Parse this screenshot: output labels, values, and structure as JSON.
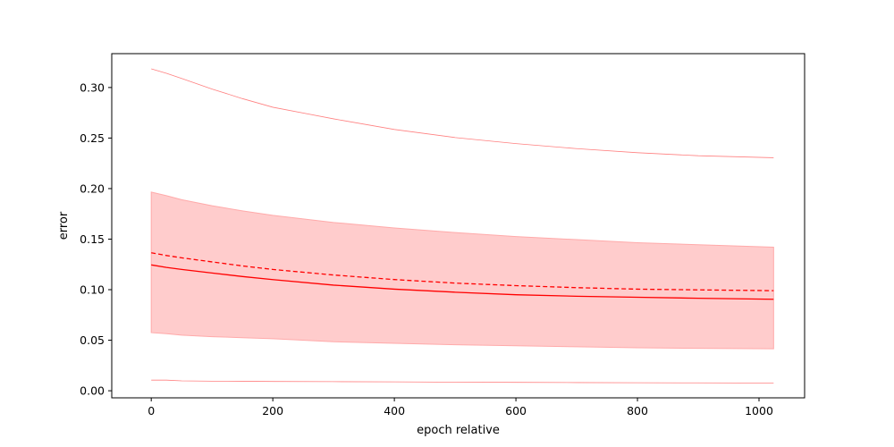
{
  "chart_data": {
    "type": "line",
    "title": "",
    "xlabel": "epoch relative",
    "ylabel": "error",
    "xlim": [
      -65,
      1075
    ],
    "ylim": [
      -0.007,
      0.3335
    ],
    "xticks": [
      0,
      200,
      400,
      600,
      800,
      1000
    ],
    "yticks": [
      0.0,
      0.05,
      0.1,
      0.15,
      0.2,
      0.25,
      0.3
    ],
    "ytick_labels": [
      "0.00",
      "0.05",
      "0.10",
      "0.15",
      "0.20",
      "0.25",
      "0.30"
    ],
    "grid": false,
    "legend": false,
    "colors": {
      "line": "#ff0000",
      "band_fill": "#ffcccc",
      "band_edge": "#ffaaaa",
      "extreme": "#ff8080"
    },
    "x": [
      0,
      25,
      50,
      100,
      150,
      200,
      300,
      400,
      500,
      600,
      700,
      800,
      900,
      1024
    ],
    "series": [
      {
        "role": "median",
        "style": "solid",
        "values": [
          0.1245,
          0.122,
          0.12,
          0.1165,
          0.113,
          0.11,
          0.1045,
          0.1005,
          0.0975,
          0.095,
          0.0935,
          0.0925,
          0.0915,
          0.0905
        ]
      },
      {
        "role": "mean",
        "style": "dashed",
        "values": [
          0.1365,
          0.1338,
          0.1315,
          0.1275,
          0.1235,
          0.12,
          0.1145,
          0.11,
          0.1065,
          0.104,
          0.102,
          0.1005,
          0.0998,
          0.099
        ]
      },
      {
        "role": "band_upper",
        "values": [
          0.1965,
          0.193,
          0.189,
          0.183,
          0.178,
          0.1735,
          0.1665,
          0.161,
          0.1565,
          0.1525,
          0.1495,
          0.1465,
          0.1445,
          0.142
        ]
      },
      {
        "role": "band_lower",
        "values": [
          0.0575,
          0.0565,
          0.055,
          0.0535,
          0.0525,
          0.0515,
          0.0485,
          0.047,
          0.0455,
          0.0445,
          0.0435,
          0.0425,
          0.042,
          0.0415
        ]
      },
      {
        "role": "max",
        "values": [
          0.3185,
          0.314,
          0.309,
          0.2985,
          0.289,
          0.2805,
          0.269,
          0.2585,
          0.2505,
          0.2445,
          0.2395,
          0.2355,
          0.2325,
          0.2305
        ]
      },
      {
        "role": "min",
        "values": [
          0.0105,
          0.0105,
          0.0098,
          0.0095,
          0.0094,
          0.0092,
          0.009,
          0.0088,
          0.0085,
          0.0083,
          0.0081,
          0.0079,
          0.0078,
          0.0076
        ]
      }
    ]
  }
}
